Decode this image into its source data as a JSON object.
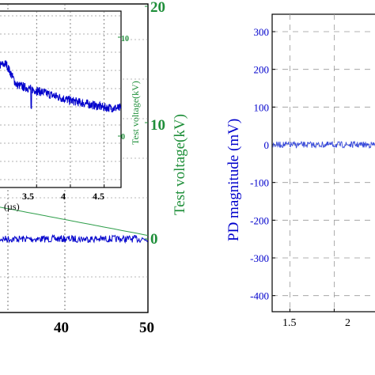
{
  "chart_data": [
    {
      "type": "line",
      "title": "",
      "xlabel": "",
      "ylabel_right": "Test voltage(kV)",
      "x_ticks": [
        "40",
        "50"
      ],
      "x_range": [
        30,
        50
      ],
      "y_right_ticks": [
        "0",
        "10",
        "20"
      ],
      "y_right_range": [
        0,
        20
      ],
      "colors": {
        "pd": "#0000cc",
        "voltage": "#2e9e4a",
        "axis_right": "#1f8f3a",
        "frame": "#000000"
      },
      "series": [
        {
          "values_description": "noise band around 0",
          "x": [
            30,
            50
          ],
          "y": [
            0,
            0
          ]
        },
        {
          "x": [
            30,
            50
          ],
          "y": [
            2.8,
            0.3
          ]
        }
      ]
    },
    {
      "type": "line",
      "title": "",
      "xlabel_partial": "(µs)",
      "ylabel_right": "Test voltage(kV)",
      "x_ticks": [
        "3.5",
        "4",
        "4.5"
      ],
      "x_range": [
        2.9,
        4.75
      ],
      "y_right_ticks": [
        "0",
        "10"
      ],
      "y_right_range": [
        -2,
        14
      ],
      "colors": {
        "pd": "#0000cc",
        "axis_right": "#1f8f3a"
      },
      "series": [
        {
          "x": [
            2.9,
            3.05,
            3.2,
            3.5,
            4.0,
            4.5,
            4.75
          ],
          "y": [
            7.1,
            7.3,
            5.2,
            4.6,
            3.6,
            2.9,
            2.8
          ]
        }
      ]
    },
    {
      "type": "line",
      "title": "",
      "xlabel": "",
      "ylabel": "PD magnitude (mV)",
      "x_ticks": [
        "1.5",
        "2"
      ],
      "x_range": [
        1.3,
        2.55
      ],
      "y_ticks": [
        "300",
        "200",
        "100",
        "0",
        "-100",
        "-200",
        "-300",
        "-400"
      ],
      "y_range": [
        -430,
        330
      ],
      "grid": true,
      "colors": {
        "signal": "#3a4cdb",
        "axis": "#0000cc"
      },
      "series": [
        {
          "x": [
            1.3,
            2.55
          ],
          "y": [
            0,
            0
          ]
        }
      ]
    }
  ]
}
